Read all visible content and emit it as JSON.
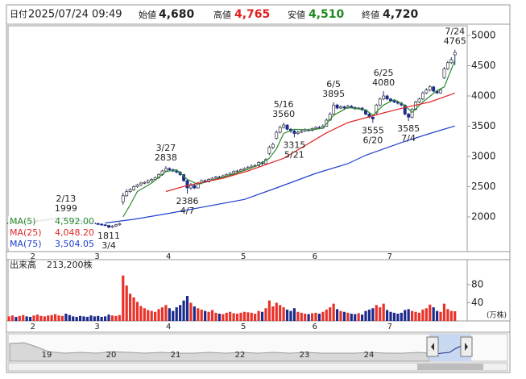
{
  "header": {
    "date_label": "日付",
    "date": "2025/07/24 09:49",
    "fields": [
      {
        "label": "始値",
        "value": {
          "value": 4680,
          "label": "4,680"
        }
      },
      {
        "label": "高値",
        "value": {
          "value": 4765,
          "label": "4,765"
        }
      },
      {
        "label": "安値",
        "value": {
          "value": 4510,
          "label": "4,510"
        }
      },
      {
        "label": "終値",
        "value": {
          "value": 4720,
          "label": "4,720"
        }
      }
    ]
  },
  "chart_data": {
    "type": "candlestick",
    "categories": [
      null,
      null,
      null,
      null,
      null,
      null,
      null,
      null,
      null,
      "2",
      null,
      null,
      null,
      null,
      null,
      null,
      null,
      null,
      null,
      null,
      null,
      null,
      null,
      null,
      null,
      null,
      null,
      "3",
      null,
      null,
      null,
      null,
      null,
      null,
      null,
      null,
      null,
      null,
      null,
      null,
      null,
      null,
      null,
      null,
      null,
      null,
      null,
      "4",
      null,
      null,
      null,
      null,
      null,
      null,
      null,
      null,
      null,
      null,
      null,
      null,
      null,
      null,
      null,
      null,
      null,
      null,
      null,
      null,
      "5",
      null,
      null,
      null,
      null,
      null,
      null,
      null,
      null,
      null,
      null,
      null,
      null,
      null,
      null,
      null,
      null,
      null,
      null,
      null,
      "6",
      null,
      null,
      null,
      null,
      null,
      null,
      null,
      null,
      null,
      null,
      null,
      null,
      null,
      null,
      null,
      null,
      null,
      null,
      null,
      null,
      "7",
      null,
      null,
      null,
      null,
      null,
      null,
      null,
      null,
      null,
      null,
      null,
      null,
      null,
      null,
      null,
      null
    ],
    "open": [
      1890,
      1900,
      1910,
      1895,
      1920,
      1930,
      1915,
      1905,
      1925,
      1940,
      1945,
      1955,
      1960,
      1970,
      1975,
      1980,
      1985,
      1975,
      1960,
      1950,
      1940,
      1930,
      1920,
      1910,
      1900,
      1890,
      1880,
      1870,
      1860,
      1830,
      1850,
      1870,
      2250,
      2350,
      2420,
      2450,
      2500,
      2530,
      2560,
      2570,
      2600,
      2620,
      2650,
      2700,
      2760,
      2800,
      2780,
      2760,
      2740,
      2700,
      2600,
      2480,
      2520,
      2480,
      2560,
      2600,
      2580,
      2620,
      2640,
      2660,
      2650,
      2680,
      2700,
      2720,
      2750,
      2760,
      2780,
      2800,
      2820,
      2840,
      2850,
      2900,
      2880,
      3050,
      3150,
      3300,
      3400,
      3480,
      3520,
      3450,
      3420,
      3380,
      3400,
      3420,
      3440,
      3430,
      3460,
      3480,
      3470,
      3500,
      3600,
      3700,
      3850,
      3800,
      3820,
      3800,
      3830,
      3810,
      3790,
      3800,
      3770,
      3700,
      3650,
      3720,
      3850,
      3950,
      4000,
      3950,
      3920,
      3900,
      3880,
      3850,
      3700,
      3650,
      3780,
      3900,
      3950,
      4050,
      4100,
      4150,
      4080,
      4050,
      4300,
      4450,
      4550,
      4680
    ],
    "high": [
      1915,
      1925,
      1925,
      1935,
      1945,
      1945,
      1930,
      1940,
      1955,
      1960,
      1970,
      1975,
      1985,
      1990,
      1995,
      1997,
      1999,
      1990,
      1975,
      1965,
      1955,
      1945,
      1935,
      1925,
      1915,
      1905,
      1895,
      1885,
      1870,
      1865,
      1885,
      1905,
      2400,
      2460,
      2480,
      2520,
      2550,
      2580,
      2590,
      2620,
      2640,
      2670,
      2720,
      2780,
      2838,
      2820,
      2800,
      2780,
      2760,
      2710,
      2620,
      2560,
      2540,
      2580,
      2620,
      2620,
      2640,
      2660,
      2680,
      2680,
      2700,
      2720,
      2740,
      2770,
      2780,
      2800,
      2820,
      2845,
      2865,
      2875,
      2920,
      2925,
      2970,
      3180,
      3230,
      3430,
      3510,
      3560,
      3530,
      3470,
      3440,
      3430,
      3445,
      3465,
      3460,
      3480,
      3500,
      3505,
      3530,
      3630,
      3730,
      3895,
      3870,
      3845,
      3840,
      3855,
      3850,
      3825,
      3820,
      3815,
      3780,
      3720,
      3670,
      3870,
      3975,
      4080,
      4020,
      3970,
      3940,
      3925,
      3900,
      3860,
      3720,
      3800,
      3920,
      3975,
      4075,
      4130,
      4180,
      4165,
      4100,
      4125,
      4480,
      4580,
      4640,
      4765
    ],
    "low": [
      1875,
      1885,
      1880,
      1880,
      1905,
      1900,
      1890,
      1890,
      1910,
      1925,
      1930,
      1940,
      1945,
      1955,
      1960,
      1965,
      1960,
      1945,
      1935,
      1925,
      1915,
      1905,
      1895,
      1885,
      1875,
      1865,
      1855,
      1845,
      1811,
      1815,
      1835,
      1855,
      2200,
      2330,
      2400,
      2430,
      2480,
      2510,
      2540,
      2550,
      2580,
      2600,
      2630,
      2680,
      2740,
      2760,
      2740,
      2720,
      2680,
      2580,
      2386,
      2450,
      2460,
      2470,
      2540,
      2560,
      2570,
      2600,
      2620,
      2630,
      2640,
      2660,
      2690,
      2700,
      2730,
      2740,
      2760,
      2790,
      2805,
      2820,
      2830,
      2860,
      2870,
      3020,
      3120,
      3280,
      3380,
      3460,
      3430,
      3390,
      3315,
      3360,
      3385,
      3405,
      3410,
      3415,
      3440,
      3450,
      3455,
      3490,
      3590,
      3690,
      3780,
      3785,
      3780,
      3790,
      3795,
      3770,
      3775,
      3750,
      3680,
      3630,
      3555,
      3700,
      3830,
      3930,
      3930,
      3900,
      3880,
      3860,
      3830,
      3680,
      3585,
      3630,
      3760,
      3880,
      3930,
      4030,
      4075,
      4060,
      4030,
      4035,
      4280,
      4430,
      4530,
      4510
    ],
    "close": [
      1900,
      1910,
      1895,
      1920,
      1930,
      1915,
      1905,
      1925,
      1940,
      1945,
      1955,
      1960,
      1970,
      1975,
      1980,
      1985,
      1975,
      1960,
      1950,
      1940,
      1930,
      1920,
      1910,
      1900,
      1890,
      1880,
      1870,
      1860,
      1830,
      1850,
      1870,
      1890,
      2350,
      2420,
      2450,
      2500,
      2530,
      2560,
      2570,
      2600,
      2620,
      2650,
      2700,
      2760,
      2800,
      2780,
      2760,
      2740,
      2700,
      2600,
      2480,
      2520,
      2480,
      2560,
      2600,
      2580,
      2620,
      2640,
      2660,
      2650,
      2680,
      2700,
      2720,
      2750,
      2760,
      2780,
      2800,
      2820,
      2840,
      2850,
      2900,
      2880,
      2950,
      3150,
      3200,
      3400,
      3480,
      3520,
      3450,
      3420,
      3380,
      3400,
      3420,
      3440,
      3430,
      3460,
      3480,
      3470,
      3500,
      3600,
      3700,
      3850,
      3800,
      3820,
      3800,
      3830,
      3810,
      3790,
      3800,
      3770,
      3700,
      3650,
      3620,
      3850,
      3950,
      4000,
      3950,
      3920,
      3900,
      3880,
      3850,
      3700,
      3650,
      3780,
      3900,
      3950,
      4050,
      4100,
      4150,
      4080,
      4050,
      4100,
      4450,
      4550,
      4600,
      4720
    ],
    "up_color": "#ffffff",
    "down_color": "#1c2a8c",
    "ylim": [
      1427,
      5160
    ],
    "yticks": [
      2000,
      2500,
      3000,
      3500,
      4000,
      4500,
      5000
    ],
    "grid": false,
    "series": [
      {
        "name": "MA(5)",
        "color": "#2a8a2a",
        "current": {
          "value": 4592.0,
          "label": "4,592.00"
        },
        "x": [
          32,
          34,
          36,
          40,
          44,
          47,
          50,
          53,
          57,
          62,
          67,
          70,
          73,
          75,
          77,
          80,
          85,
          88,
          91,
          95,
          100,
          102,
          105,
          108,
          111,
          113,
          116,
          120,
          122,
          125
        ],
        "values": [
          2000,
          2200,
          2420,
          2560,
          2750,
          2780,
          2620,
          2540,
          2610,
          2690,
          2790,
          2860,
          2970,
          3130,
          3380,
          3450,
          3440,
          3470,
          3680,
          3810,
          3770,
          3680,
          3850,
          3940,
          3840,
          3730,
          3900,
          4090,
          4150,
          4592
        ]
      },
      {
        "name": "MA(25)",
        "color": "#e02828",
        "current": {
          "value": 4048.2,
          "label": "4,048.20"
        },
        "x": [
          44,
          50,
          60,
          67,
          77,
          85,
          89,
          95,
          100,
          105,
          111,
          118,
          125
        ],
        "values": [
          2420,
          2520,
          2640,
          2760,
          2970,
          3250,
          3390,
          3560,
          3640,
          3720,
          3810,
          3900,
          4048.2
        ]
      },
      {
        "name": "MA(75)",
        "color": "#1f3fd0",
        "current": {
          "value": 3504.05,
          "label": "3,504.05"
        },
        "x": [
          27,
          35,
          45,
          55,
          66,
          75,
          86,
          95,
          100,
          110,
          118,
          125
        ],
        "values": [
          1900,
          1960,
          2060,
          2170,
          2290,
          2480,
          2720,
          2880,
          3020,
          3230,
          3380,
          3504.05
        ]
      }
    ],
    "annotations": [
      {
        "date": "2/13",
        "value": 1999
      },
      {
        "date": "3/4",
        "value": 1811
      },
      {
        "date": "3/27",
        "value": 2838
      },
      {
        "date": "4/7",
        "value": 2386
      },
      {
        "date": "5/16",
        "value": 3560
      },
      {
        "date": "5/21",
        "value": 3315
      },
      {
        "date": "6/5",
        "value": 3895
      },
      {
        "date": "6/20",
        "value": 3555
      },
      {
        "date": "6/25",
        "value": 4080
      },
      {
        "date": "7/4",
        "value": 3585
      },
      {
        "date": "7/24",
        "value": 4765
      }
    ],
    "volume": {
      "label": "出来高",
      "current": {
        "value": 213200,
        "label": "213,200株"
      },
      "unit": "(万株)",
      "up_color": "#e8322a",
      "down_color": "#1c2a8c",
      "ylim": [
        0,
        135
      ],
      "yticks": [
        40,
        80
      ],
      "values": [
        10,
        12,
        9,
        11,
        13,
        10,
        9,
        12,
        14,
        11,
        10,
        12,
        13,
        15,
        12,
        11,
        16,
        13,
        10,
        9,
        11,
        10,
        9,
        12,
        10,
        11,
        9,
        10,
        14,
        12,
        11,
        13,
        100,
        78,
        60,
        52,
        42,
        33,
        28,
        24,
        22,
        20,
        26,
        30,
        35,
        28,
        22,
        30,
        35,
        45,
        55,
        40,
        32,
        28,
        25,
        22,
        20,
        24,
        18,
        16,
        15,
        18,
        20,
        17,
        16,
        18,
        20,
        19,
        18,
        16,
        22,
        20,
        28,
        45,
        32,
        40,
        35,
        30,
        25,
        22,
        28,
        20,
        18,
        16,
        15,
        17,
        18,
        16,
        20,
        25,
        30,
        38,
        26,
        22,
        20,
        18,
        16,
        15,
        17,
        14,
        22,
        25,
        28,
        35,
        30,
        38,
        24,
        20,
        18,
        16,
        18,
        24,
        26,
        22,
        20,
        18,
        25,
        28,
        36,
        30,
        22,
        20,
        38,
        26,
        22,
        21.32
      ]
    }
  },
  "navigator": {
    "years": [
      "19",
      "20",
      "21",
      "22",
      "23",
      "24"
    ]
  }
}
